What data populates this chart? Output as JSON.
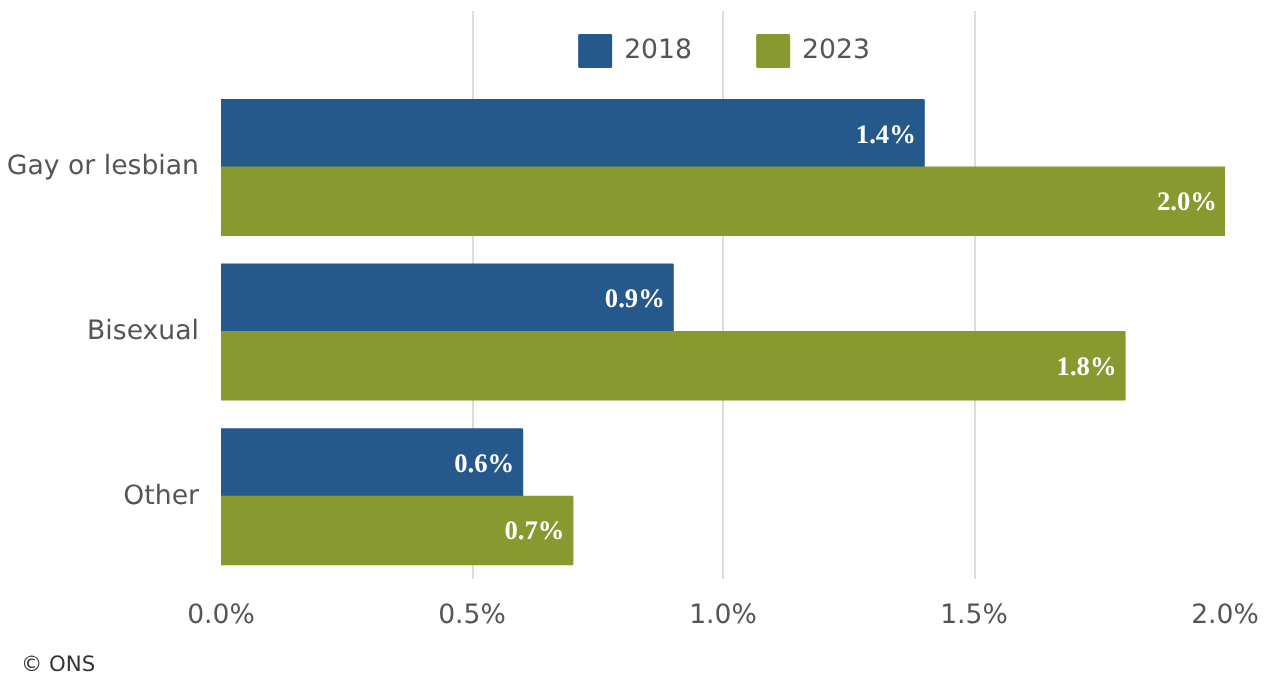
{
  "chart_data": {
    "type": "bar",
    "orientation": "horizontal",
    "categories": [
      "Gay or lesbian",
      "Bisexual",
      "Other"
    ],
    "series": [
      {
        "name": "2018",
        "color": "#25598c",
        "values": [
          1.4,
          0.9,
          0.6
        ],
        "value_labels": [
          "1.4%",
          "0.9%",
          "0.6%"
        ]
      },
      {
        "name": "2023",
        "color": "#87992f",
        "values": [
          2.0,
          1.8,
          0.7
        ],
        "value_labels": [
          "2.0%",
          "1.8%",
          "0.7%"
        ]
      }
    ],
    "xlim": [
      0,
      2.0
    ],
    "xticks": [
      {
        "value": 0,
        "label": "0.0%"
      },
      {
        "value": 0.5,
        "label": "0.5%"
      },
      {
        "value": 1.0,
        "label": "1.0%"
      },
      {
        "value": 1.5,
        "label": "1.5%"
      },
      {
        "value": 2.0,
        "label": "2.0%"
      }
    ],
    "grid": "x",
    "legend": "top",
    "annotations": [
      "© ONS"
    ]
  }
}
